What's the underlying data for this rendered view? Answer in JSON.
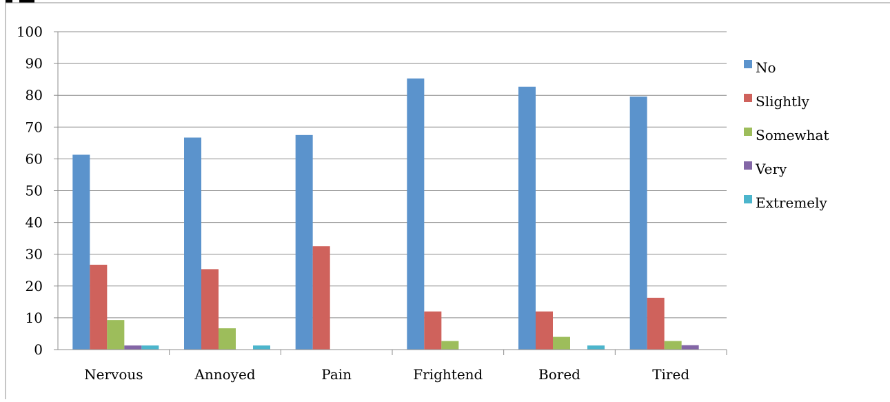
{
  "chart_data": {
    "type": "bar",
    "title": "",
    "xlabel": "",
    "ylabel": "",
    "categories": [
      "Nervous",
      "Annoyed",
      "Pain",
      "Frightend",
      "Bored",
      "Tired"
    ],
    "ylim": [
      0,
      100
    ],
    "yticks": [
      "0",
      "10",
      "20",
      "30",
      "40",
      "50",
      "60",
      "70",
      "80",
      "90",
      "100"
    ],
    "grid": true,
    "legend_position": "right",
    "series": [
      {
        "name": "No",
        "color": "#5B93CC",
        "values": [
          61.3,
          66.7,
          67.5,
          85.3,
          82.7,
          79.6
        ]
      },
      {
        "name": "Slightly",
        "color": "#CF625C",
        "values": [
          26.7,
          25.3,
          32.5,
          12.0,
          12.0,
          16.3
        ]
      },
      {
        "name": "Somewhat",
        "color": "#9DBD5B",
        "values": [
          9.3,
          6.7,
          0,
          2.7,
          4.0,
          2.7
        ]
      },
      {
        "name": "Very",
        "color": "#8366A6",
        "values": [
          1.3,
          0,
          0,
          0,
          0,
          1.4
        ]
      },
      {
        "name": "Extremely",
        "color": "#4CB5CC",
        "values": [
          1.3,
          1.3,
          0,
          0,
          1.3,
          0
        ]
      }
    ]
  }
}
